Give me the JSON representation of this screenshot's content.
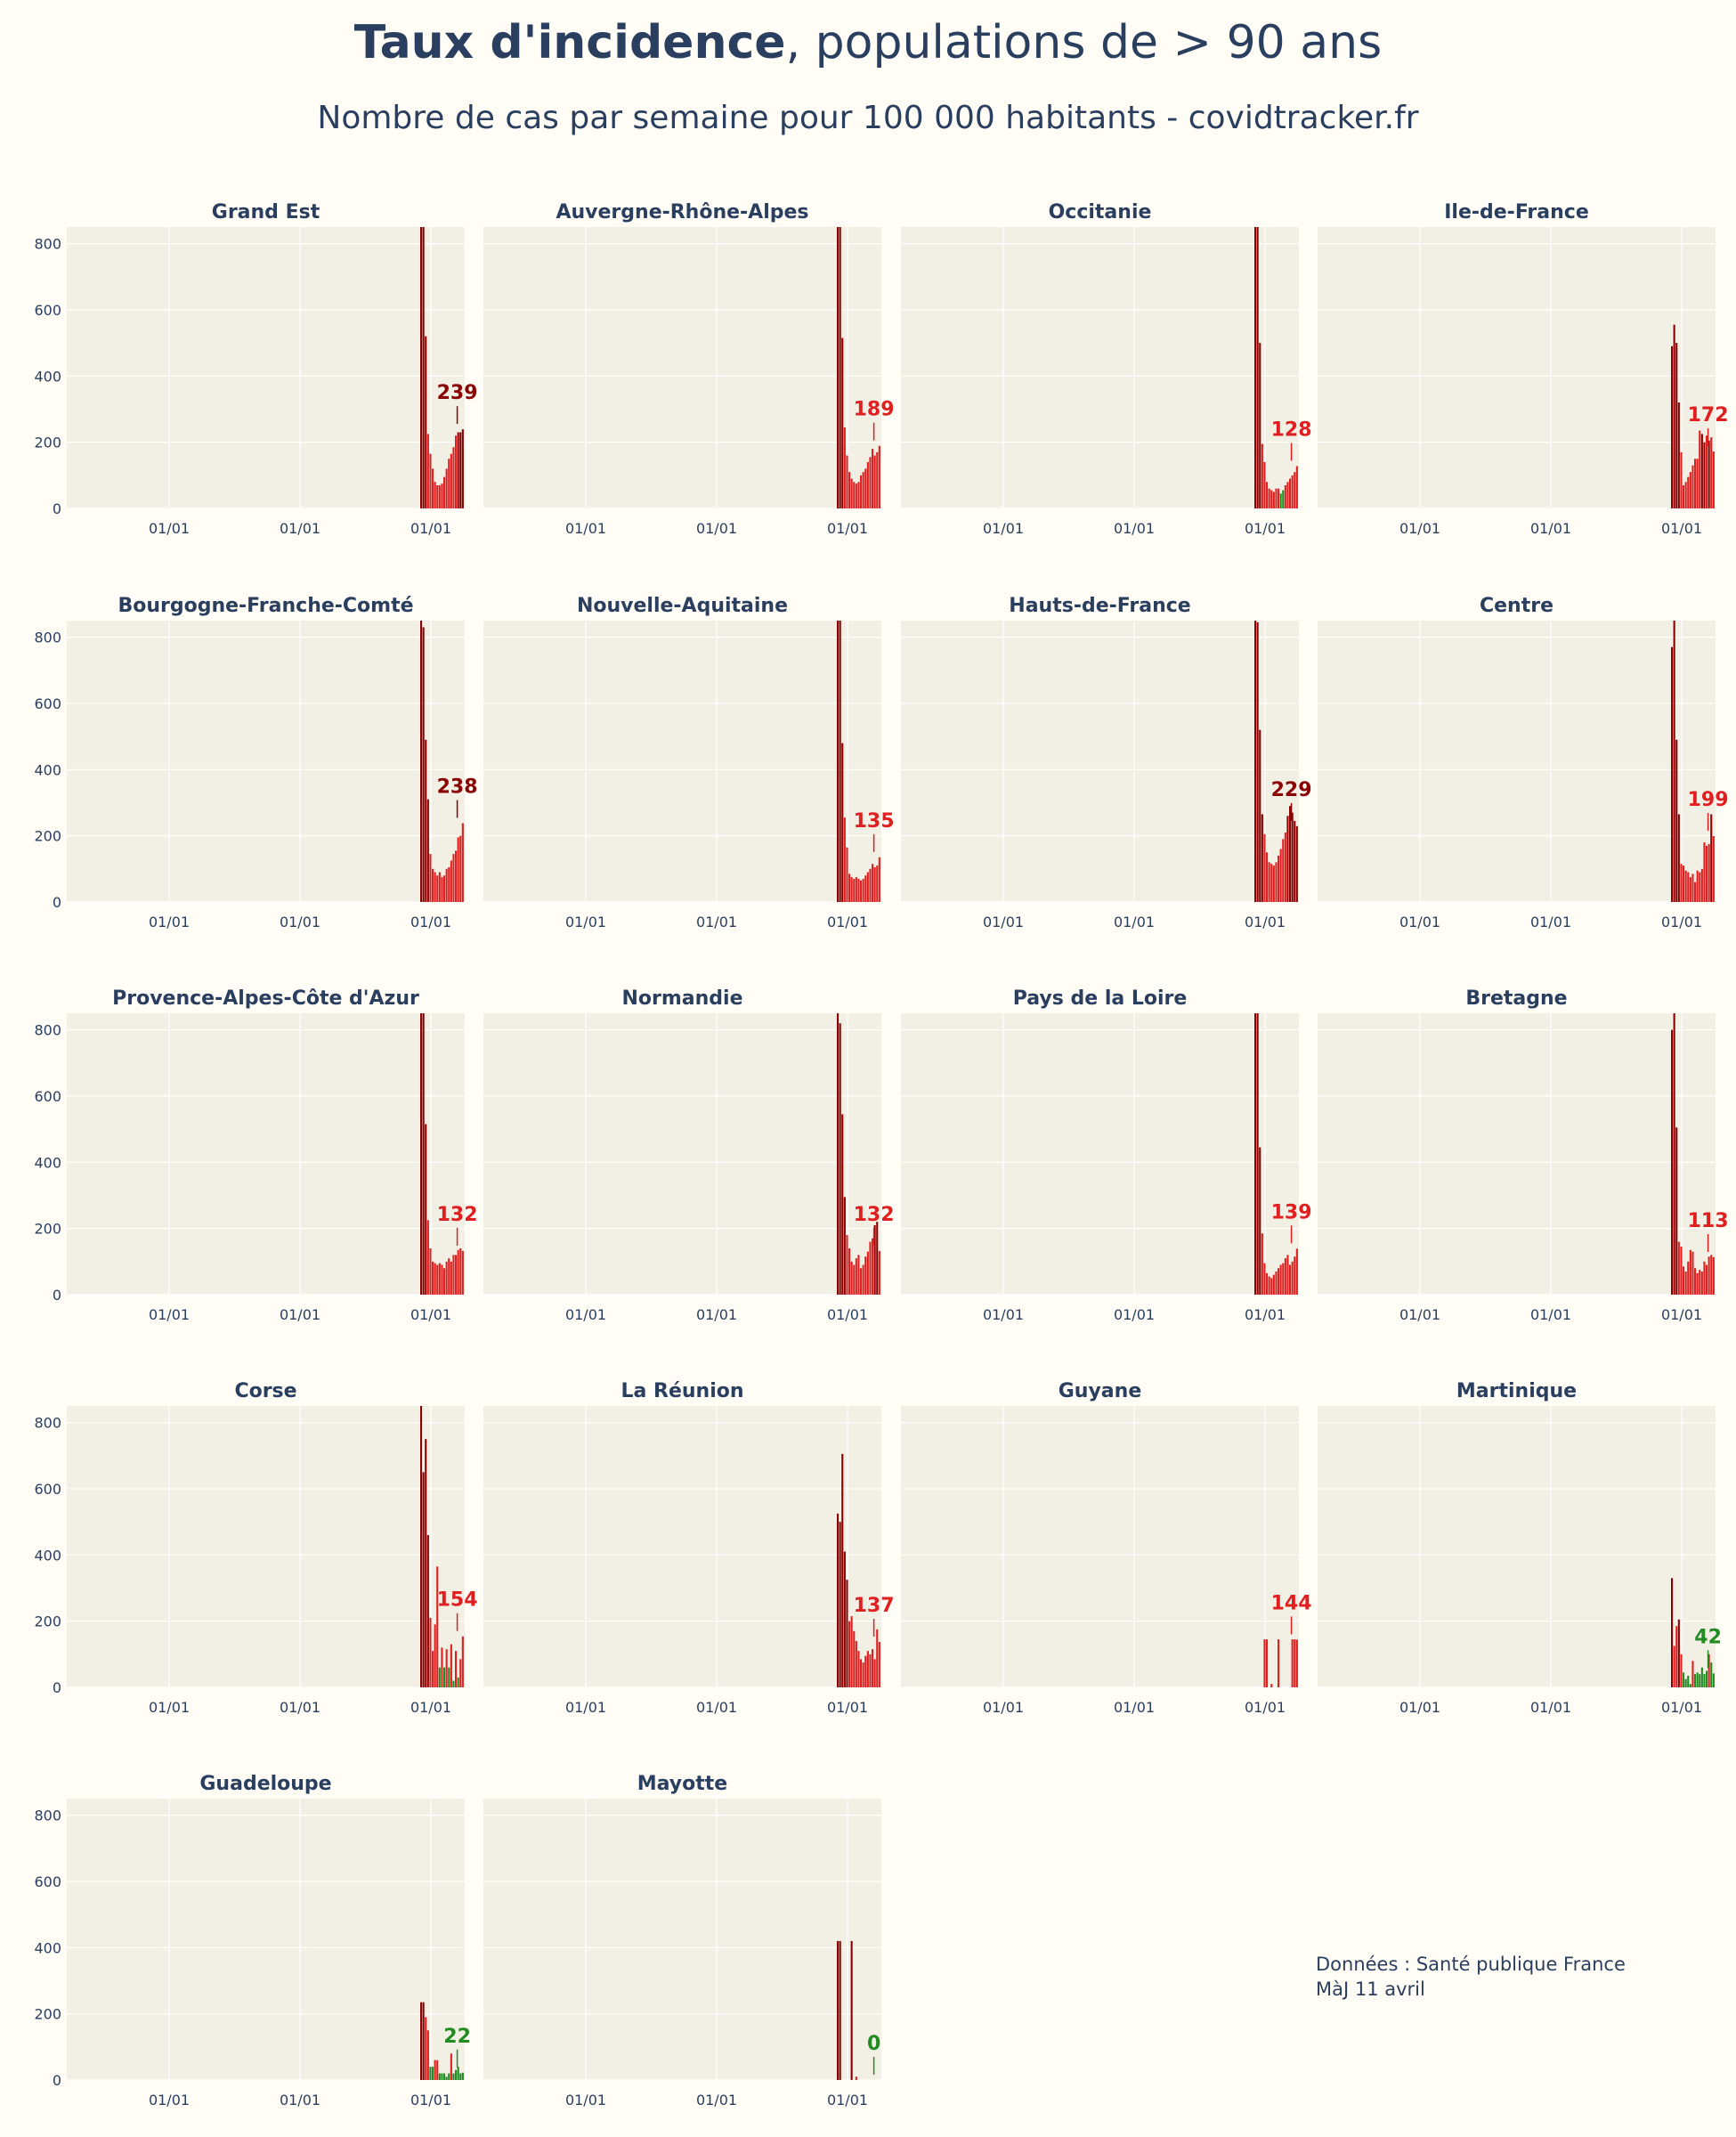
{
  "header": {
    "title_bold": "Taux d'incidence",
    "title_rest": ", populations de > 90 ans",
    "subtitle": "Nombre de cas par semaine pour 100 000 habitants - covidtracker.fr"
  },
  "footer": {
    "source_line": "Données : Santé publique France",
    "update_line": "MàJ 11 avril"
  },
  "colors": {
    "background": "#fffdf5",
    "plot_bg": "#f2efe4",
    "dark_red": "#8b0000",
    "red": "#e02020",
    "green": "#228b22",
    "text": "#2a3f5f"
  },
  "chart_data": {
    "type": "bar",
    "ylim": [
      0,
      850
    ],
    "yticks": [
      0,
      200,
      400,
      600,
      800
    ],
    "xtick_labels": [
      "01/01",
      "01/01",
      "01/01"
    ],
    "grid": true,
    "panels": [
      {
        "name": "Grand Est",
        "last": 239,
        "label_color": "#8b0000",
        "values": [
          850,
          850,
          520,
          225,
          165,
          120,
          80,
          70,
          70,
          75,
          95,
          120,
          150,
          165,
          185,
          220,
          230,
          230,
          239
        ],
        "colors": [
          "dr",
          "dr",
          "dr",
          "r",
          "r",
          "r",
          "r",
          "r",
          "r",
          "r",
          "r",
          "r",
          "r",
          "r",
          "r",
          "r",
          "dr",
          "dr",
          "dr"
        ]
      },
      {
        "name": "Auvergne-Rhône-Alpes",
        "last": 189,
        "label_color": "#e02020",
        "values": [
          850,
          850,
          515,
          245,
          160,
          110,
          90,
          80,
          75,
          80,
          100,
          110,
          120,
          140,
          155,
          180,
          160,
          170,
          189
        ],
        "colors": [
          "dr",
          "dr",
          "dr",
          "r",
          "r",
          "r",
          "r",
          "r",
          "r",
          "r",
          "r",
          "r",
          "r",
          "r",
          "r",
          "r",
          "r",
          "r",
          "r"
        ]
      },
      {
        "name": "Occitanie",
        "last": 128,
        "label_color": "#e02020",
        "values": [
          850,
          850,
          500,
          195,
          140,
          80,
          60,
          55,
          50,
          60,
          60,
          45,
          55,
          70,
          80,
          90,
          100,
          110,
          128
        ],
        "colors": [
          "dr",
          "dr",
          "dr",
          "r",
          "r",
          "r",
          "r",
          "r",
          "r",
          "r",
          "r",
          "g",
          "g",
          "r",
          "r",
          "r",
          "r",
          "r",
          "r"
        ]
      },
      {
        "name": "Ile-de-France",
        "last": 172,
        "label_color": "#e02020",
        "values": [
          490,
          555,
          500,
          320,
          170,
          70,
          80,
          95,
          110,
          130,
          150,
          150,
          235,
          225,
          200,
          220,
          205,
          215,
          172
        ],
        "colors": [
          "dr",
          "dr",
          "dr",
          "dr",
          "r",
          "r",
          "r",
          "r",
          "r",
          "r",
          "r",
          "r",
          "r",
          "dr",
          "dr",
          "r",
          "dr",
          "r",
          "r"
        ]
      },
      {
        "name": "Bourgogne-Franche-Comté",
        "last": 238,
        "label_color": "#8b0000",
        "values": [
          850,
          830,
          490,
          310,
          145,
          100,
          90,
          80,
          90,
          75,
          80,
          100,
          105,
          125,
          145,
          155,
          195,
          200,
          238
        ],
        "colors": [
          "dr",
          "dr",
          "dr",
          "dr",
          "r",
          "r",
          "r",
          "r",
          "r",
          "r",
          "r",
          "r",
          "r",
          "r",
          "r",
          "r",
          "r",
          "r",
          "r"
        ]
      },
      {
        "name": "Nouvelle-Aquitaine",
        "last": 135,
        "label_color": "#e02020",
        "values": [
          850,
          850,
          480,
          255,
          165,
          85,
          75,
          70,
          75,
          70,
          65,
          70,
          80,
          90,
          100,
          115,
          105,
          110,
          135
        ],
        "colors": [
          "dr",
          "dr",
          "dr",
          "r",
          "r",
          "r",
          "r",
          "r",
          "r",
          "r",
          "r",
          "r",
          "r",
          "r",
          "r",
          "r",
          "r",
          "r",
          "r"
        ]
      },
      {
        "name": "Hauts-de-France",
        "last": 229,
        "label_color": "#8b0000",
        "values": [
          850,
          845,
          520,
          265,
          205,
          150,
          120,
          115,
          110,
          120,
          140,
          160,
          190,
          210,
          260,
          290,
          270,
          245,
          229
        ],
        "colors": [
          "dr",
          "dr",
          "dr",
          "dr",
          "r",
          "r",
          "r",
          "r",
          "r",
          "r",
          "r",
          "r",
          "r",
          "r",
          "dr",
          "dr",
          "dr",
          "dr",
          "dr"
        ]
      },
      {
        "name": "Centre",
        "last": 199,
        "label_color": "#e02020",
        "values": [
          770,
          850,
          490,
          265,
          115,
          110,
          95,
          90,
          75,
          85,
          60,
          95,
          90,
          100,
          180,
          170,
          175,
          265,
          199
        ],
        "colors": [
          "dr",
          "dr",
          "dr",
          "dr",
          "r",
          "r",
          "r",
          "r",
          "r",
          "r",
          "r",
          "r",
          "r",
          "r",
          "r",
          "r",
          "r",
          "dr",
          "r"
        ]
      },
      {
        "name": "Provence-Alpes-Côte d'Azur",
        "last": 132,
        "label_color": "#e02020",
        "values": [
          850,
          850,
          515,
          225,
          140,
          100,
          95,
          90,
          95,
          90,
          80,
          100,
          110,
          100,
          120,
          120,
          135,
          140,
          132
        ],
        "colors": [
          "dr",
          "dr",
          "dr",
          "r",
          "r",
          "r",
          "r",
          "r",
          "r",
          "r",
          "r",
          "r",
          "r",
          "r",
          "r",
          "r",
          "r",
          "r",
          "r"
        ]
      },
      {
        "name": "Normandie",
        "last": 132,
        "label_color": "#e02020",
        "values": [
          850,
          820,
          545,
          295,
          180,
          140,
          100,
          90,
          110,
          120,
          80,
          90,
          115,
          130,
          160,
          170,
          210,
          220,
          132
        ],
        "colors": [
          "dr",
          "dr",
          "dr",
          "dr",
          "r",
          "r",
          "r",
          "r",
          "r",
          "r",
          "r",
          "r",
          "r",
          "r",
          "r",
          "r",
          "dr",
          "dr",
          "r"
        ]
      },
      {
        "name": "Pays de la Loire",
        "last": 139,
        "label_color": "#e02020",
        "values": [
          850,
          850,
          445,
          185,
          95,
          65,
          55,
          50,
          60,
          70,
          80,
          90,
          95,
          110,
          120,
          90,
          100,
          115,
          139
        ],
        "colors": [
          "dr",
          "dr",
          "dr",
          "r",
          "r",
          "r",
          "r",
          "r",
          "r",
          "r",
          "r",
          "r",
          "r",
          "r",
          "r",
          "r",
          "r",
          "r",
          "r"
        ]
      },
      {
        "name": "Bretagne",
        "last": 113,
        "label_color": "#e02020",
        "values": [
          800,
          850,
          505,
          160,
          145,
          85,
          70,
          100,
          135,
          130,
          80,
          65,
          75,
          70,
          100,
          90,
          115,
          120,
          113
        ],
        "colors": [
          "dr",
          "dr",
          "dr",
          "r",
          "r",
          "r",
          "r",
          "r",
          "r",
          "r",
          "r",
          "r",
          "r",
          "r",
          "r",
          "r",
          "r",
          "r",
          "r"
        ]
      },
      {
        "name": "Corse",
        "last": 154,
        "label_color": "#e02020",
        "values": [
          850,
          650,
          750,
          460,
          210,
          110,
          190,
          365,
          60,
          120,
          60,
          115,
          60,
          130,
          20,
          110,
          30,
          85,
          154
        ],
        "colors": [
          "dr",
          "dr",
          "dr",
          "dr",
          "r",
          "r",
          "r",
          "r",
          "g",
          "r",
          "g",
          "r",
          "g",
          "r",
          "g",
          "r",
          "g",
          "r",
          "r"
        ]
      },
      {
        "name": "La Réunion",
        "last": 137,
        "label_color": "#e02020",
        "values": [
          525,
          500,
          705,
          410,
          325,
          200,
          215,
          170,
          140,
          110,
          85,
          75,
          95,
          110,
          100,
          115,
          85,
          175,
          137
        ],
        "colors": [
          "dr",
          "dr",
          "dr",
          "dr",
          "dr",
          "r",
          "r",
          "r",
          "r",
          "r",
          "r",
          "r",
          "r",
          "r",
          "r",
          "r",
          "r",
          "r",
          "r"
        ]
      },
      {
        "name": "Guyane",
        "last": 144,
        "label_color": "#e02020",
        "values": [
          0,
          0,
          0,
          0,
          145,
          145,
          0,
          10,
          0,
          0,
          145,
          0,
          0,
          0,
          0,
          0,
          145,
          145,
          144
        ],
        "colors": [
          "r",
          "r",
          "r",
          "r",
          "r",
          "r",
          "r",
          "r",
          "r",
          "r",
          "r",
          "r",
          "r",
          "r",
          "r",
          "r",
          "r",
          "r",
          "r"
        ]
      },
      {
        "name": "Martinique",
        "last": 42,
        "label_color": "#228b22",
        "values": [
          330,
          125,
          185,
          205,
          100,
          45,
          25,
          35,
          10,
          80,
          40,
          45,
          40,
          60,
          40,
          50,
          100,
          75,
          42
        ],
        "colors": [
          "dr",
          "r",
          "r",
          "dr",
          "r",
          "g",
          "g",
          "g",
          "g",
          "r",
          "g",
          "g",
          "g",
          "g",
          "g",
          "g",
          "r",
          "g",
          "g"
        ]
      },
      {
        "name": "Guadeloupe",
        "last": 22,
        "label_color": "#228b22",
        "values": [
          235,
          235,
          190,
          150,
          40,
          40,
          60,
          60,
          20,
          20,
          20,
          10,
          20,
          80,
          20,
          30,
          40,
          20,
          22
        ],
        "colors": [
          "dr",
          "dr",
          "r",
          "r",
          "g",
          "g",
          "r",
          "r",
          "g",
          "g",
          "g",
          "g",
          "g",
          "r",
          "g",
          "g",
          "g",
          "g",
          "g"
        ]
      },
      {
        "name": "Mayotte",
        "last": 0,
        "label_color": "#228b22",
        "values": [
          420,
          420,
          0,
          0,
          0,
          0,
          420,
          0,
          10,
          0,
          0,
          0,
          0,
          0,
          0,
          0,
          0,
          0,
          0
        ],
        "colors": [
          "dr",
          "dr",
          "g",
          "g",
          "g",
          "g",
          "dr",
          "g",
          "r",
          "g",
          "g",
          "g",
          "g",
          "g",
          "g",
          "g",
          "g",
          "g",
          "g"
        ]
      }
    ]
  }
}
